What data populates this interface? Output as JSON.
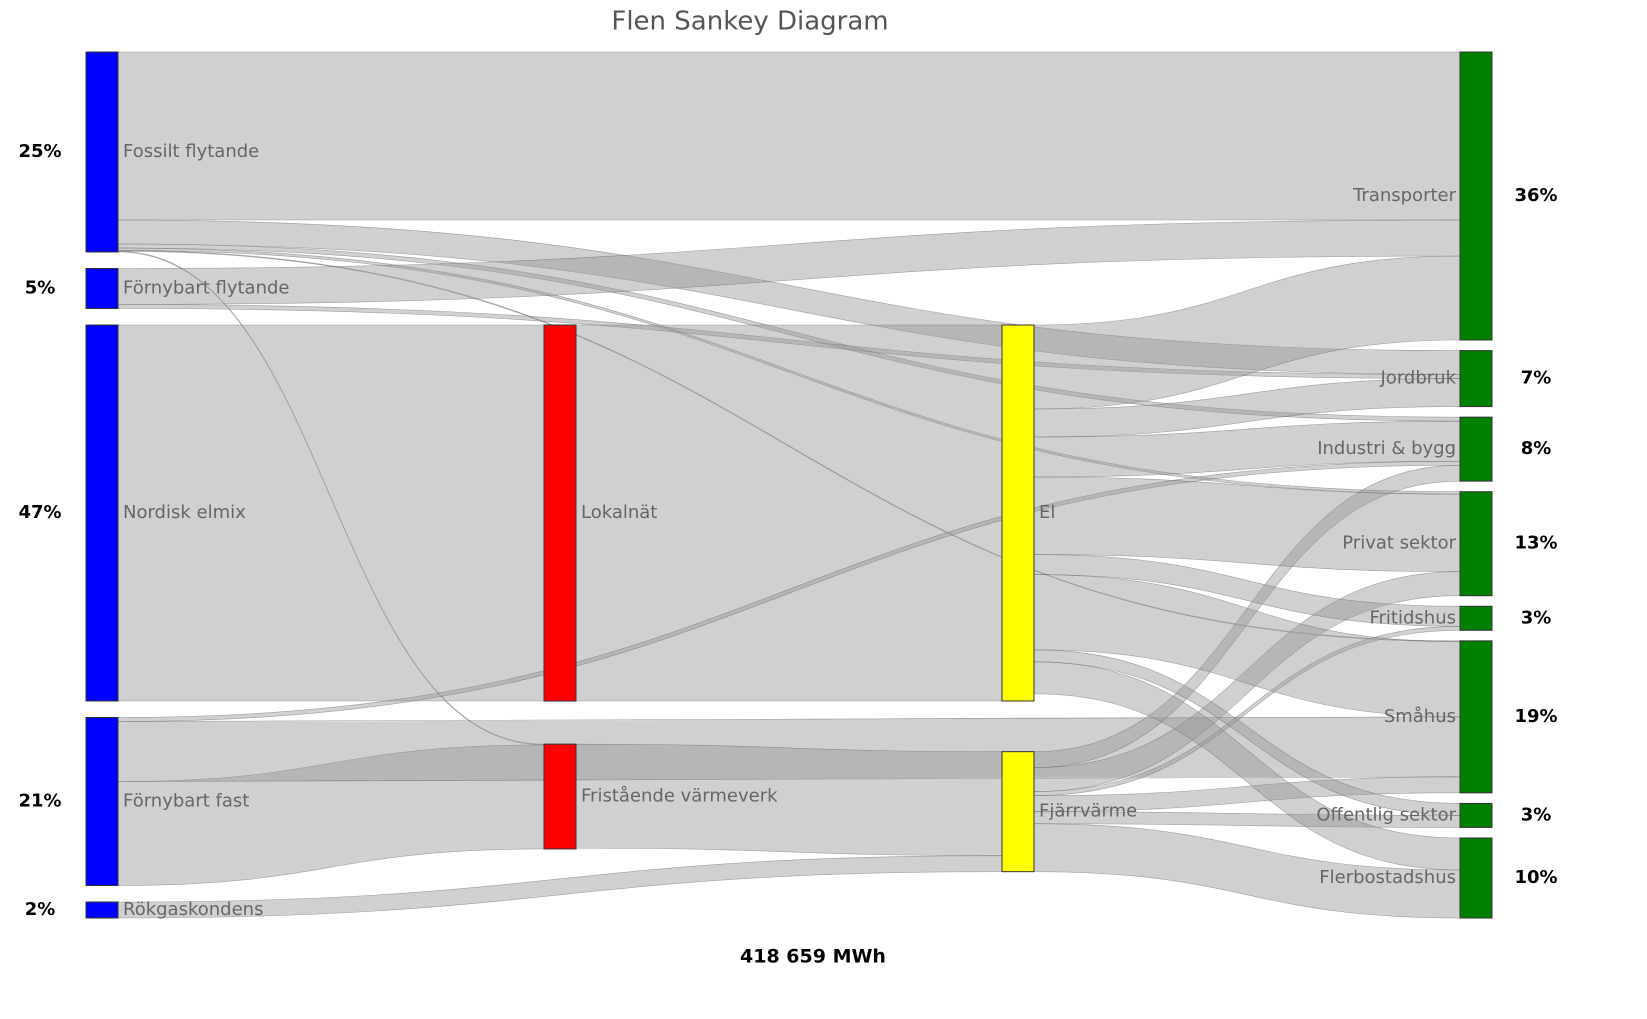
{
  "chart_data": {
    "type": "sankey",
    "title": "Flen Sankey Diagram",
    "total_label": "418 659 MWh",
    "nodes": [
      {
        "name": "Fossilt flytande",
        "color": "#0000ff",
        "value": 25,
        "value_label": "25%"
      },
      {
        "name": "Förnybart flytande",
        "color": "#0000ff",
        "value": 5,
        "value_label": "5%"
      },
      {
        "name": "Nordisk elmix",
        "color": "#0000ff",
        "value": 47,
        "value_label": "47%"
      },
      {
        "name": "Förnybart fast",
        "color": "#0000ff",
        "value": 21,
        "value_label": "21%"
      },
      {
        "name": "Rökgaskondens",
        "color": "#0000ff",
        "value": 2,
        "value_label": "2%"
      },
      {
        "name": "Lokalnät",
        "color": "#ff0000"
      },
      {
        "name": "Fristående värmeverk",
        "color": "#ff0000"
      },
      {
        "name": "El",
        "color": "#ffff00"
      },
      {
        "name": "Fjärrvärme",
        "color": "#ffff00"
      },
      {
        "name": "Transporter",
        "color": "#008000",
        "value": 36,
        "value_label": "36%"
      },
      {
        "name": "Jordbruk",
        "color": "#008000",
        "value": 7,
        "value_label": "7%"
      },
      {
        "name": "Industri & bygg",
        "color": "#008000",
        "value": 8,
        "value_label": "8%"
      },
      {
        "name": "Privat sektor",
        "color": "#008000",
        "value": 13,
        "value_label": "13%"
      },
      {
        "name": "Fritidshus",
        "color": "#008000",
        "value": 3,
        "value_label": "3%"
      },
      {
        "name": "Småhus",
        "color": "#008000",
        "value": 19,
        "value_label": "19%"
      },
      {
        "name": "Offentlig sektor",
        "color": "#008000",
        "value": 3,
        "value_label": "3%"
      },
      {
        "name": "Flerbostadshus",
        "color": "#008000",
        "value": 10,
        "value_label": "10%"
      }
    ],
    "links": [
      {
        "source": 0,
        "target": 9,
        "value": 21
      },
      {
        "source": 0,
        "target": 10,
        "value": 3
      },
      {
        "source": 0,
        "target": 11,
        "value": 0.5
      },
      {
        "source": 0,
        "target": 12,
        "value": 0.3
      },
      {
        "source": 0,
        "target": 6,
        "value": 0.1
      },
      {
        "source": 0,
        "target": 14,
        "value": 0.1
      },
      {
        "source": 1,
        "target": 9,
        "value": 4.5
      },
      {
        "source": 1,
        "target": 10,
        "value": 0.5
      },
      {
        "source": 2,
        "target": 5,
        "value": 47
      },
      {
        "source": 5,
        "target": 7,
        "value": 47
      },
      {
        "source": 3,
        "target": 6,
        "value": 13
      },
      {
        "source": 3,
        "target": 14,
        "value": 7.5
      },
      {
        "source": 3,
        "target": 11,
        "value": 0.5
      },
      {
        "source": 4,
        "target": 8,
        "value": 2
      },
      {
        "source": 6,
        "target": 8,
        "value": 13
      },
      {
        "source": 8,
        "target": 16,
        "value": 6
      },
      {
        "source": 8,
        "target": 12,
        "value": 3
      },
      {
        "source": 8,
        "target": 15,
        "value": 1.5
      },
      {
        "source": 8,
        "target": 11,
        "value": 2
      },
      {
        "source": 8,
        "target": 14,
        "value": 2
      },
      {
        "source": 8,
        "target": 13,
        "value": 0.5
      },
      {
        "source": 7,
        "target": 9,
        "value": 10.5
      },
      {
        "source": 7,
        "target": 10,
        "value": 3.5
      },
      {
        "source": 7,
        "target": 11,
        "value": 5
      },
      {
        "source": 7,
        "target": 12,
        "value": 9.7
      },
      {
        "source": 7,
        "target": 13,
        "value": 2.5
      },
      {
        "source": 7,
        "target": 14,
        "value": 9.4
      },
      {
        "source": 7,
        "target": 15,
        "value": 1.5
      },
      {
        "source": 7,
        "target": 16,
        "value": 4
      }
    ]
  }
}
